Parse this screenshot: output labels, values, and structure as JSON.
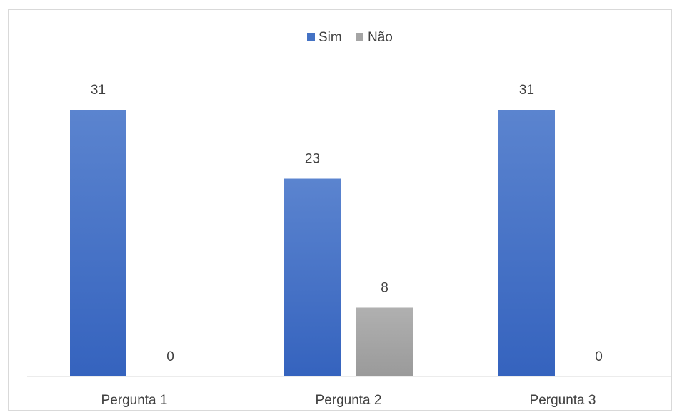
{
  "chart_data": {
    "type": "bar",
    "categories": [
      "Pergunta 1",
      "Pergunta 2",
      "Pergunta 3"
    ],
    "series": [
      {
        "name": "Sim",
        "values": [
          31,
          23,
          31
        ],
        "color": "#4472c4"
      },
      {
        "name": "Não",
        "values": [
          0,
          8,
          0
        ],
        "color": "#a5a5a5"
      }
    ],
    "title": "",
    "xlabel": "",
    "ylabel": "",
    "ylim": [
      0,
      31
    ],
    "grid": false,
    "legend_position": "top-center",
    "data_labels": true
  }
}
